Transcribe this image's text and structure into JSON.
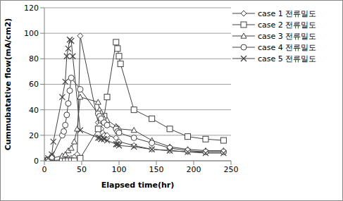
{
  "chart_data": {
    "type": "line",
    "x_label": "Elapsed time(hr)",
    "y_label": "Cummubatative flow(mA/cm2)",
    "xlim": [
      0,
      250
    ],
    "xticks": [
      0,
      50,
      100,
      150,
      200,
      250
    ],
    "ylim": [
      0,
      120
    ],
    "yticks": [
      0,
      20,
      40,
      60,
      80,
      100,
      120
    ],
    "grid": true,
    "legend": "right",
    "series": [
      {
        "name": "case 1 전류밀도",
        "color": "#404040",
        "marker": "diamond",
        "x": [
          0,
          5,
          10,
          24,
          28,
          32,
          36,
          40,
          44,
          48,
          72,
          74,
          76,
          78,
          80,
          84,
          96,
          100,
          120,
          144,
          168,
          192,
          216,
          240
        ],
        "values": [
          0,
          0,
          0,
          1,
          1,
          2,
          2,
          3,
          5,
          98,
          30,
          28,
          25,
          22,
          20,
          20,
          18,
          15,
          12,
          9,
          8,
          7,
          7,
          7
        ]
      },
      {
        "name": "case 2 전류밀도",
        "color": "#404040",
        "marker": "square",
        "x": [
          0,
          5,
          10,
          24,
          28,
          32,
          36,
          40,
          48,
          72,
          76,
          80,
          84,
          96,
          98,
          100,
          102,
          120,
          144,
          168,
          192,
          216,
          240
        ],
        "values": [
          0,
          0,
          0,
          0,
          0,
          0,
          0,
          0,
          2,
          25,
          32,
          35,
          50,
          93,
          88,
          82,
          76,
          40,
          33,
          25,
          19,
          17,
          16
        ]
      },
      {
        "name": "case 3 전류밀도",
        "color": "#404040",
        "marker": "triangle",
        "x": [
          0,
          5,
          10,
          24,
          28,
          32,
          36,
          40,
          44,
          48,
          72,
          74,
          76,
          78,
          80,
          84,
          96,
          98,
          100,
          120,
          144,
          168,
          192,
          216,
          240
        ],
        "values": [
          0,
          1,
          2,
          4,
          5,
          8,
          10,
          15,
          25,
          50,
          46,
          40,
          38,
          35,
          33,
          32,
          27,
          26,
          25,
          24,
          16,
          11,
          9,
          8,
          8
        ]
      },
      {
        "name": "case 4 전류밀도",
        "color": "#404040",
        "marker": "circle",
        "x": [
          0,
          5,
          10,
          24,
          26,
          28,
          30,
          32,
          34,
          36,
          48,
          72,
          74,
          76,
          80,
          84,
          96,
          98,
          100,
          120,
          144,
          168,
          192,
          216,
          240
        ],
        "values": [
          0,
          1,
          3,
          20,
          23,
          28,
          36,
          45,
          55,
          65,
          56,
          37,
          35,
          33,
          30,
          28,
          25,
          23,
          22,
          18,
          14,
          10,
          8,
          7,
          7
        ]
      },
      {
        "name": "case 5 전류밀도",
        "color": "#404040",
        "marker": "x",
        "x": [
          0,
          5,
          10,
          12,
          24,
          28,
          30,
          32,
          34,
          36,
          38,
          48,
          72,
          74,
          76,
          80,
          84,
          96,
          98,
          100,
          120,
          144,
          168,
          192,
          216,
          240
        ],
        "values": [
          1,
          2,
          5,
          15,
          50,
          62,
          82,
          88,
          95,
          94,
          82,
          24,
          18,
          18,
          17,
          17,
          16,
          13,
          13,
          12,
          11,
          9,
          8,
          7,
          6,
          6
        ]
      }
    ]
  }
}
